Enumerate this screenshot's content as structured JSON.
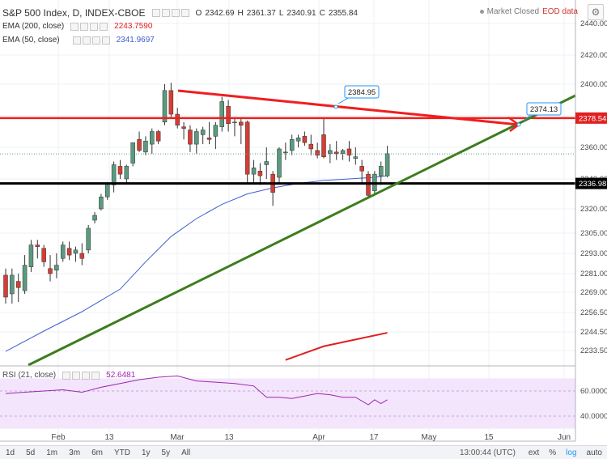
{
  "header": {
    "symbol": "S&P 500 Index, D, INDEX-CBOE",
    "o_label": "O",
    "o": "2342.69",
    "h_label": "H",
    "h": "2361.37",
    "l_label": "L",
    "l": "2340.91",
    "c_label": "C",
    "c": "2355.84",
    "status": "Market Closed",
    "eod": "EOD data"
  },
  "indicators": {
    "ema200": {
      "label": "EMA (200, close)",
      "value": "2243.7590",
      "color": "#e02020"
    },
    "ema50": {
      "label": "EMA (50, close)",
      "value": "2341.9697",
      "color": "#3f5fd0"
    },
    "rsi": {
      "label": "RSI (21, close)",
      "value": "52.6481"
    }
  },
  "price_axis": {
    "labels": [
      "2440.00",
      "2420.00",
      "2400.00",
      "2380.00",
      "2360.00",
      "2340.00",
      "2320.00",
      "2305.00",
      "2293.00",
      "2281.00",
      "2269.00",
      "2256.50",
      "2244.50",
      "2233.50"
    ],
    "highlights": [
      {
        "label": "2378.54",
        "color": "#e02020",
        "price": 2378.54
      },
      {
        "label": "2336.98",
        "color": "#000000",
        "price": 2336.98
      }
    ]
  },
  "rsi_axis": {
    "labels": [
      "60.0000",
      "40.0000"
    ]
  },
  "time_axis": {
    "labels": [
      "Feb",
      "13",
      "Mar",
      "13",
      "Apr",
      "17",
      "May",
      "15",
      "Jun"
    ]
  },
  "annotations": [
    {
      "label": "2384.95"
    },
    {
      "label": "2374.13"
    }
  ],
  "colors": {
    "up": "#5b9a7e",
    "down": "#d53d35",
    "trend_green": "#3d7d1e",
    "trend_red": "#f01e1e",
    "rsi_bg": "#f3e5fb",
    "rsi_line": "#9c27b0"
  },
  "toolbar": {
    "ranges": [
      "1d",
      "5d",
      "1m",
      "3m",
      "6m",
      "YTD",
      "1y",
      "5y",
      "All"
    ],
    "clock": "13:00:44 (UTC)",
    "pct": "%",
    "log": "log",
    "auto": "auto",
    "ext": "ext"
  },
  "chart_data": {
    "type": "candlestick",
    "title": "S&P 500 Index, D, INDEX-CBOE",
    "ylim": [
      2225,
      2448
    ],
    "candles": [
      {
        "o": 2280,
        "h": 2284,
        "l": 2262,
        "c": 2266
      },
      {
        "o": 2268,
        "h": 2284,
        "l": 2262,
        "c": 2280
      },
      {
        "o": 2276,
        "h": 2281,
        "l": 2263,
        "c": 2272
      },
      {
        "o": 2270,
        "h": 2292,
        "l": 2268,
        "c": 2286
      },
      {
        "o": 2285,
        "h": 2301,
        "l": 2282,
        "c": 2298
      },
      {
        "o": 2298,
        "h": 2301,
        "l": 2290,
        "c": 2297
      },
      {
        "o": 2296,
        "h": 2298,
        "l": 2285,
        "c": 2288
      },
      {
        "o": 2284,
        "h": 2292,
        "l": 2276,
        "c": 2281
      },
      {
        "o": 2283,
        "h": 2293,
        "l": 2278,
        "c": 2286
      },
      {
        "o": 2290,
        "h": 2300,
        "l": 2288,
        "c": 2298
      },
      {
        "o": 2296,
        "h": 2300,
        "l": 2289,
        "c": 2292
      },
      {
        "o": 2293,
        "h": 2297,
        "l": 2288,
        "c": 2295
      },
      {
        "o": 2293,
        "h": 2299,
        "l": 2286,
        "c": 2290
      },
      {
        "o": 2295,
        "h": 2310,
        "l": 2293,
        "c": 2308
      },
      {
        "o": 2313,
        "h": 2318,
        "l": 2311,
        "c": 2316
      },
      {
        "o": 2320,
        "h": 2330,
        "l": 2319,
        "c": 2328
      },
      {
        "o": 2328,
        "h": 2338,
        "l": 2326,
        "c": 2337
      },
      {
        "o": 2336,
        "h": 2351,
        "l": 2331,
        "c": 2349
      },
      {
        "o": 2348,
        "h": 2352,
        "l": 2340,
        "c": 2343
      },
      {
        "o": 2340,
        "h": 2349,
        "l": 2337,
        "c": 2348
      },
      {
        "o": 2350,
        "h": 2363,
        "l": 2348,
        "c": 2363
      },
      {
        "o": 2365,
        "h": 2370,
        "l": 2357,
        "c": 2358
      },
      {
        "o": 2357,
        "h": 2367,
        "l": 2355,
        "c": 2364
      },
      {
        "o": 2362,
        "h": 2372,
        "l": 2356,
        "c": 2370
      },
      {
        "o": 2370,
        "h": 2371,
        "l": 2362,
        "c": 2364
      },
      {
        "o": 2376,
        "h": 2400,
        "l": 2374,
        "c": 2396
      },
      {
        "o": 2396,
        "h": 2401,
        "l": 2378,
        "c": 2381
      },
      {
        "o": 2381,
        "h": 2385,
        "l": 2372,
        "c": 2374
      },
      {
        "o": 2373,
        "h": 2376,
        "l": 2365,
        "c": 2372
      },
      {
        "o": 2371,
        "h": 2374,
        "l": 2357,
        "c": 2362
      },
      {
        "o": 2362,
        "h": 2372,
        "l": 2356,
        "c": 2370
      },
      {
        "o": 2368,
        "h": 2373,
        "l": 2362,
        "c": 2371
      },
      {
        "o": 2366,
        "h": 2376,
        "l": 2362,
        "c": 2365
      },
      {
        "o": 2367,
        "h": 2376,
        "l": 2359,
        "c": 2374
      },
      {
        "o": 2373,
        "h": 2392,
        "l": 2370,
        "c": 2389
      },
      {
        "o": 2386,
        "h": 2390,
        "l": 2370,
        "c": 2375
      },
      {
        "o": 2376,
        "h": 2379,
        "l": 2367,
        "c": 2376
      },
      {
        "o": 2376,
        "h": 2378,
        "l": 2362,
        "c": 2374
      },
      {
        "o": 2376,
        "h": 2377,
        "l": 2337,
        "c": 2343
      },
      {
        "o": 2343,
        "h": 2352,
        "l": 2337,
        "c": 2347
      },
      {
        "o": 2345,
        "h": 2350,
        "l": 2336,
        "c": 2342
      },
      {
        "o": 2349,
        "h": 2360,
        "l": 2340,
        "c": 2351
      },
      {
        "o": 2343,
        "h": 2345,
        "l": 2322,
        "c": 2331
      },
      {
        "o": 2341,
        "h": 2360,
        "l": 2337,
        "c": 2359
      },
      {
        "o": 2357,
        "h": 2363,
        "l": 2352,
        "c": 2357
      },
      {
        "o": 2358,
        "h": 2368,
        "l": 2355,
        "c": 2365
      },
      {
        "o": 2364,
        "h": 2368,
        "l": 2360,
        "c": 2366
      },
      {
        "o": 2367,
        "h": 2370,
        "l": 2361,
        "c": 2363
      },
      {
        "o": 2362,
        "h": 2368,
        "l": 2355,
        "c": 2359
      },
      {
        "o": 2358,
        "h": 2363,
        "l": 2353,
        "c": 2355
      },
      {
        "o": 2368,
        "h": 2378,
        "l": 2353,
        "c": 2354
      },
      {
        "o": 2356,
        "h": 2362,
        "l": 2350,
        "c": 2358
      },
      {
        "o": 2357,
        "h": 2364,
        "l": 2352,
        "c": 2356
      },
      {
        "o": 2356,
        "h": 2359,
        "l": 2352,
        "c": 2358
      },
      {
        "o": 2359,
        "h": 2364,
        "l": 2351,
        "c": 2355
      },
      {
        "o": 2353,
        "h": 2360,
        "l": 2349,
        "c": 2354
      },
      {
        "o": 2348,
        "h": 2352,
        "l": 2337,
        "c": 2345
      },
      {
        "o": 2343,
        "h": 2345,
        "l": 2327,
        "c": 2329
      },
      {
        "o": 2332,
        "h": 2345,
        "l": 2330,
        "c": 2343
      },
      {
        "o": 2342,
        "h": 2351,
        "l": 2336,
        "c": 2348
      },
      {
        "o": 2342,
        "h": 2361,
        "l": 2341,
        "c": 2356
      }
    ],
    "ema50": [
      {
        "i": 0,
        "v": 2233
      },
      {
        "i": 6,
        "v": 2245
      },
      {
        "i": 12,
        "v": 2257
      },
      {
        "i": 18,
        "v": 2271
      },
      {
        "i": 22,
        "v": 2288
      },
      {
        "i": 26,
        "v": 2303
      },
      {
        "i": 30,
        "v": 2314
      },
      {
        "i": 34,
        "v": 2323
      },
      {
        "i": 38,
        "v": 2330
      },
      {
        "i": 42,
        "v": 2334
      },
      {
        "i": 46,
        "v": 2337
      },
      {
        "i": 50,
        "v": 2339
      },
      {
        "i": 54,
        "v": 2340
      },
      {
        "i": 58,
        "v": 2341
      },
      {
        "i": 60,
        "v": 2342
      }
    ],
    "ema200": [
      {
        "i": 44,
        "v": 2228
      },
      {
        "i": 50,
        "v": 2236
      },
      {
        "i": 55,
        "v": 2240
      },
      {
        "i": 60,
        "v": 2244
      }
    ],
    "rsi": [
      {
        "i": 0,
        "v": 58
      },
      {
        "i": 3,
        "v": 59
      },
      {
        "i": 6,
        "v": 60
      },
      {
        "i": 9,
        "v": 61
      },
      {
        "i": 12,
        "v": 59
      },
      {
        "i": 15,
        "v": 63
      },
      {
        "i": 18,
        "v": 66
      },
      {
        "i": 21,
        "v": 69
      },
      {
        "i": 24,
        "v": 71
      },
      {
        "i": 27,
        "v": 72
      },
      {
        "i": 30,
        "v": 68
      },
      {
        "i": 33,
        "v": 67
      },
      {
        "i": 36,
        "v": 66
      },
      {
        "i": 39,
        "v": 64
      },
      {
        "i": 41,
        "v": 55
      },
      {
        "i": 43,
        "v": 55
      },
      {
        "i": 45,
        "v": 54
      },
      {
        "i": 47,
        "v": 56
      },
      {
        "i": 49,
        "v": 58
      },
      {
        "i": 51,
        "v": 57
      },
      {
        "i": 53,
        "v": 55
      },
      {
        "i": 55,
        "v": 55
      },
      {
        "i": 57,
        "v": 49
      },
      {
        "i": 58,
        "v": 53
      },
      {
        "i": 59,
        "v": 50
      },
      {
        "i": 60,
        "v": 53
      }
    ],
    "levels": [
      2378.54,
      2336.98
    ],
    "labelled_points": [
      2384.95,
      2374.13
    ]
  }
}
